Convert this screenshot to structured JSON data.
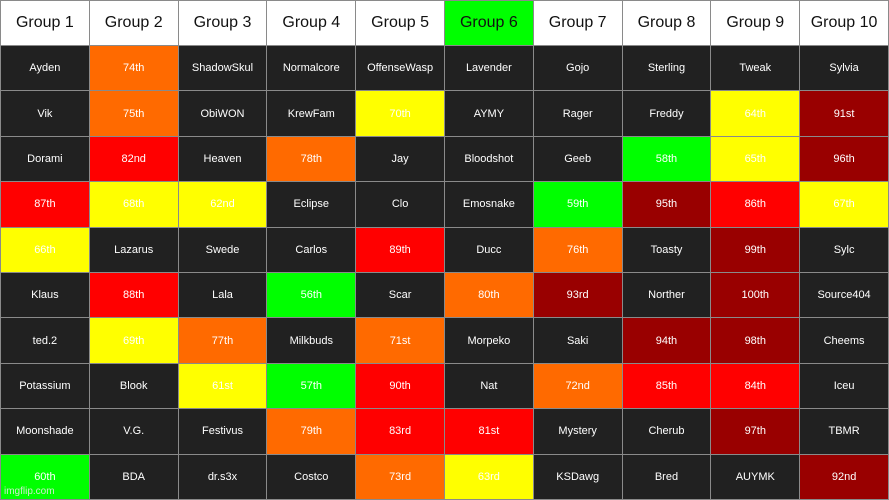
{
  "colors": {
    "dark": "#212121",
    "orange": "#ff6a00",
    "yellow": "#ffff00",
    "red": "#ff0000",
    "darkred": "#990000",
    "green": "#00ff00",
    "white": "#ffffff"
  },
  "headers": [
    {
      "label": "Group 1",
      "color": "white"
    },
    {
      "label": "Group 2",
      "color": "white"
    },
    {
      "label": "Group 3",
      "color": "white"
    },
    {
      "label": "Group 4",
      "color": "white"
    },
    {
      "label": "Group 5",
      "color": "white"
    },
    {
      "label": "Group 6",
      "color": "green"
    },
    {
      "label": "Group 7",
      "color": "white"
    },
    {
      "label": "Group 8",
      "color": "white"
    },
    {
      "label": "Group 9",
      "color": "white"
    },
    {
      "label": "Group 10",
      "color": "white"
    }
  ],
  "rows": [
    [
      {
        "text": "Ayden",
        "color": "dark"
      },
      {
        "text": "74th",
        "color": "orange"
      },
      {
        "text": "ShadowSkul",
        "color": "dark"
      },
      {
        "text": "Normalcore",
        "color": "dark"
      },
      {
        "text": "OffenseWasp",
        "color": "dark"
      },
      {
        "text": "Lavender",
        "color": "dark"
      },
      {
        "text": "Gojo",
        "color": "dark"
      },
      {
        "text": "Sterling",
        "color": "dark"
      },
      {
        "text": "Tweak",
        "color": "dark"
      },
      {
        "text": "Sylvia",
        "color": "dark"
      }
    ],
    [
      {
        "text": "Vik",
        "color": "dark"
      },
      {
        "text": "75th",
        "color": "orange"
      },
      {
        "text": "ObiWON",
        "color": "dark"
      },
      {
        "text": "KrewFam",
        "color": "dark"
      },
      {
        "text": "70th",
        "color": "yellow"
      },
      {
        "text": "AYMY",
        "color": "dark"
      },
      {
        "text": "Rager",
        "color": "dark"
      },
      {
        "text": "Freddy",
        "color": "dark"
      },
      {
        "text": "64th",
        "color": "yellow"
      },
      {
        "text": "91st",
        "color": "darkred"
      }
    ],
    [
      {
        "text": "Dorami",
        "color": "dark"
      },
      {
        "text": "82nd",
        "color": "red"
      },
      {
        "text": "Heaven",
        "color": "dark"
      },
      {
        "text": "78th",
        "color": "orange"
      },
      {
        "text": "Jay",
        "color": "dark"
      },
      {
        "text": "Bloodshot",
        "color": "dark"
      },
      {
        "text": "Geeb",
        "color": "dark"
      },
      {
        "text": "58th",
        "color": "green"
      },
      {
        "text": "65th",
        "color": "yellow"
      },
      {
        "text": "96th",
        "color": "darkred"
      }
    ],
    [
      {
        "text": "87th",
        "color": "red"
      },
      {
        "text": "68th",
        "color": "yellow"
      },
      {
        "text": "62nd",
        "color": "yellow"
      },
      {
        "text": "Eclipse",
        "color": "dark"
      },
      {
        "text": "Clo",
        "color": "dark"
      },
      {
        "text": "Emosnake",
        "color": "dark"
      },
      {
        "text": "59th",
        "color": "green"
      },
      {
        "text": "95th",
        "color": "darkred"
      },
      {
        "text": "86th",
        "color": "red"
      },
      {
        "text": "67th",
        "color": "yellow"
      }
    ],
    [
      {
        "text": "66th",
        "color": "yellow"
      },
      {
        "text": "Lazarus",
        "color": "dark"
      },
      {
        "text": "Swede",
        "color": "dark"
      },
      {
        "text": "Carlos",
        "color": "dark"
      },
      {
        "text": "89th",
        "color": "red"
      },
      {
        "text": "Ducc",
        "color": "dark"
      },
      {
        "text": "76th",
        "color": "orange"
      },
      {
        "text": "Toasty",
        "color": "dark"
      },
      {
        "text": "99th",
        "color": "darkred"
      },
      {
        "text": "Sylc",
        "color": "dark"
      }
    ],
    [
      {
        "text": "Klaus",
        "color": "dark"
      },
      {
        "text": "88th",
        "color": "red"
      },
      {
        "text": "Lala",
        "color": "dark"
      },
      {
        "text": "56th",
        "color": "green"
      },
      {
        "text": "Scar",
        "color": "dark"
      },
      {
        "text": "80th",
        "color": "orange"
      },
      {
        "text": "93rd",
        "color": "darkred"
      },
      {
        "text": "Norther",
        "color": "dark"
      },
      {
        "text": "100th",
        "color": "darkred"
      },
      {
        "text": "Source404",
        "color": "dark"
      }
    ],
    [
      {
        "text": "ted.2",
        "color": "dark"
      },
      {
        "text": "69th",
        "color": "yellow"
      },
      {
        "text": "77th",
        "color": "orange"
      },
      {
        "text": "Milkbuds",
        "color": "dark"
      },
      {
        "text": "71st",
        "color": "orange"
      },
      {
        "text": "Morpeko",
        "color": "dark"
      },
      {
        "text": "Saki",
        "color": "dark"
      },
      {
        "text": "94th",
        "color": "darkred"
      },
      {
        "text": "98th",
        "color": "darkred"
      },
      {
        "text": "Cheems",
        "color": "dark"
      }
    ],
    [
      {
        "text": "Potassium",
        "color": "dark"
      },
      {
        "text": "Blook",
        "color": "dark"
      },
      {
        "text": "61st",
        "color": "yellow"
      },
      {
        "text": "57th",
        "color": "green"
      },
      {
        "text": "90th",
        "color": "red"
      },
      {
        "text": "Nat",
        "color": "dark"
      },
      {
        "text": "72nd",
        "color": "orange"
      },
      {
        "text": "85th",
        "color": "red"
      },
      {
        "text": "84th",
        "color": "red"
      },
      {
        "text": "Iceu",
        "color": "dark"
      }
    ],
    [
      {
        "text": "Moonshade",
        "color": "dark"
      },
      {
        "text": "V.G.",
        "color": "dark"
      },
      {
        "text": "Festivus",
        "color": "dark"
      },
      {
        "text": "79th",
        "color": "orange"
      },
      {
        "text": "83rd",
        "color": "red"
      },
      {
        "text": "81st",
        "color": "red"
      },
      {
        "text": "Mystery",
        "color": "dark"
      },
      {
        "text": "Cherub",
        "color": "dark"
      },
      {
        "text": "97th",
        "color": "darkred"
      },
      {
        "text": "TBMR",
        "color": "dark"
      }
    ],
    [
      {
        "text": "60th",
        "color": "green"
      },
      {
        "text": "BDA",
        "color": "dark"
      },
      {
        "text": "dr.s3x",
        "color": "dark"
      },
      {
        "text": "Costco",
        "color": "dark"
      },
      {
        "text": "73rd",
        "color": "orange"
      },
      {
        "text": "63rd",
        "color": "yellow"
      },
      {
        "text": "KSDawg",
        "color": "dark"
      },
      {
        "text": "Bred",
        "color": "dark"
      },
      {
        "text": "AUYMK",
        "color": "dark"
      },
      {
        "text": "92nd",
        "color": "darkred"
      }
    ]
  ],
  "watermark": "imgflip.com"
}
